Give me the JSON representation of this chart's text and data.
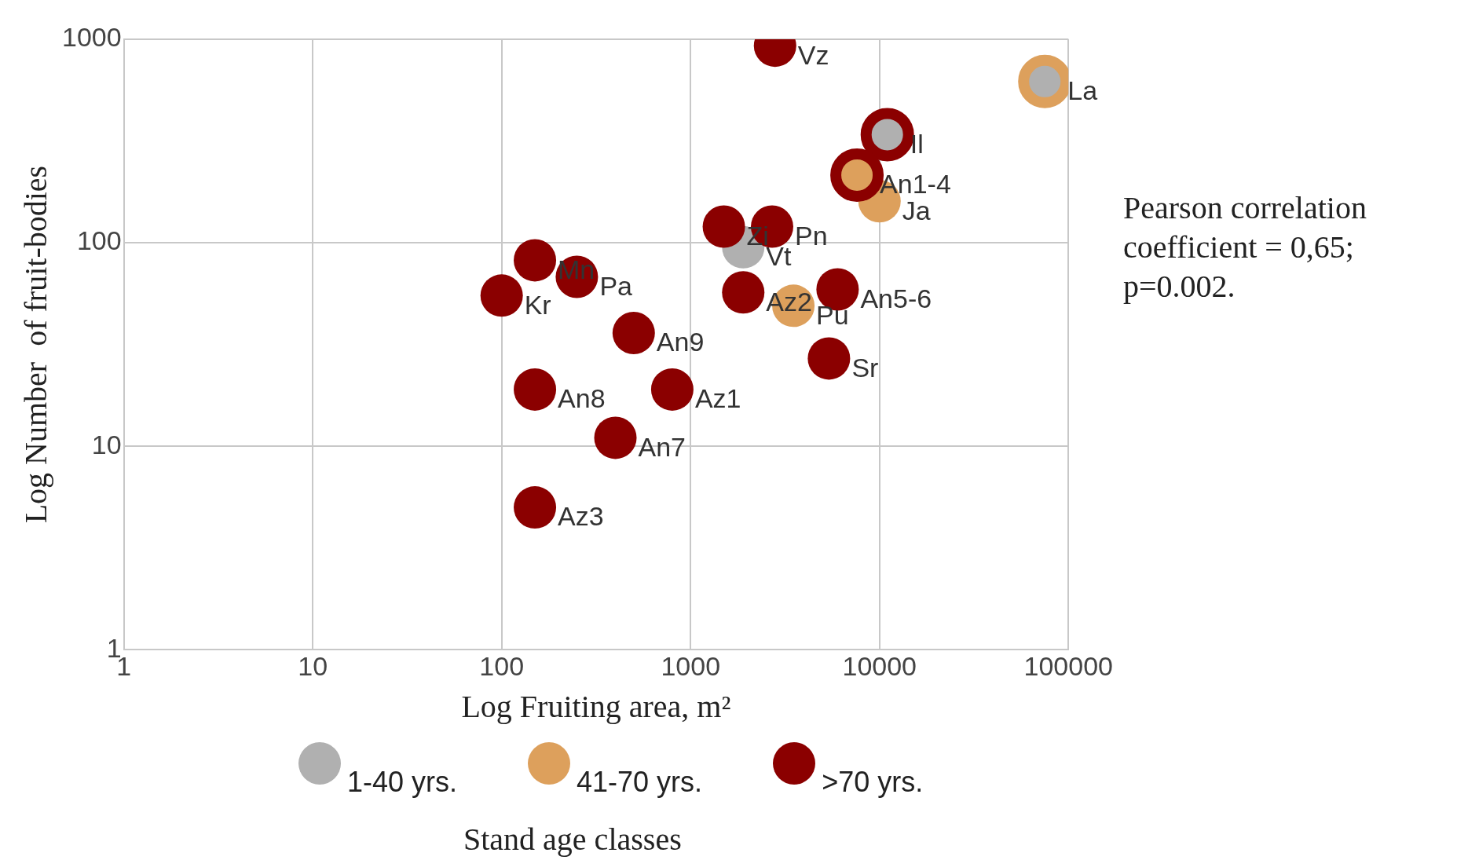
{
  "chart_data": {
    "type": "scatter",
    "xlabel": "Log Fruiting area, m²",
    "ylabel": "Log Number  of fruit-bodies",
    "legend_title": "Stand age classes",
    "log": "xy",
    "grid": true,
    "legend": "bottom",
    "marker": "circle",
    "xlim": [
      1,
      100000
    ],
    "xticks": [
      1,
      10,
      100,
      1000,
      10000,
      100000
    ],
    "ylim": [
      1,
      1000
    ],
    "yticks": [
      1,
      10,
      100,
      1000
    ],
    "series": [
      {
        "name": "1-40 yrs.",
        "color": "#b0b0b0",
        "x": [
          1900,
          75000,
          11000
        ],
        "values": [
          95,
          620,
          340
        ]
      },
      {
        "name": "41-70 yrs.",
        "color": "#dda05c",
        "x": [
          10000,
          3500,
          75000,
          7600
        ],
        "values": [
          160,
          49,
          620,
          215
        ]
      },
      {
        "name": ">70 yrs.",
        "color": "#8b0000",
        "x": [
          2800,
          1500,
          2700,
          150,
          250,
          100,
          1900,
          6000,
          500,
          5400,
          150,
          800,
          400,
          150,
          11000,
          7600
        ],
        "values": [
          930,
          120,
          120,
          82,
          68,
          55,
          57,
          59,
          36,
          27,
          19,
          19,
          11,
          5,
          340,
          215
        ]
      }
    ],
    "annotations": [
      {
        "text": "Vz",
        "x": 2800,
        "y": 930
      },
      {
        "text": "La",
        "x": 75000,
        "y": 620
      },
      {
        "text": "Il",
        "x": 11000,
        "y": 340
      },
      {
        "text": "An1-4",
        "x": 7600,
        "y": 215
      },
      {
        "text": "Ja",
        "x": 10000,
        "y": 160
      },
      {
        "text": "Zi",
        "x": 1500,
        "y": 120
      },
      {
        "text": "Vt",
        "x": 1900,
        "y": 95
      },
      {
        "text": "Pn",
        "x": 2700,
        "y": 120
      },
      {
        "text": "Mn",
        "x": 150,
        "y": 82
      },
      {
        "text": "Pa",
        "x": 250,
        "y": 68
      },
      {
        "text": "Kr",
        "x": 100,
        "y": 55
      },
      {
        "text": "Az2",
        "x": 1900,
        "y": 57
      },
      {
        "text": "Pu",
        "x": 3500,
        "y": 49
      },
      {
        "text": "An5-6",
        "x": 6000,
        "y": 59
      },
      {
        "text": "An9",
        "x": 500,
        "y": 36
      },
      {
        "text": "Sr",
        "x": 5400,
        "y": 27
      },
      {
        "text": "An8",
        "x": 150,
        "y": 19
      },
      {
        "text": "Az1",
        "x": 800,
        "y": 19
      },
      {
        "text": "An7",
        "x": 400,
        "y": 11
      },
      {
        "text": "Az3",
        "x": 150,
        "y": 5
      },
      "Pearson correlation coefficient = 0,65; p=0.002."
    ]
  }
}
